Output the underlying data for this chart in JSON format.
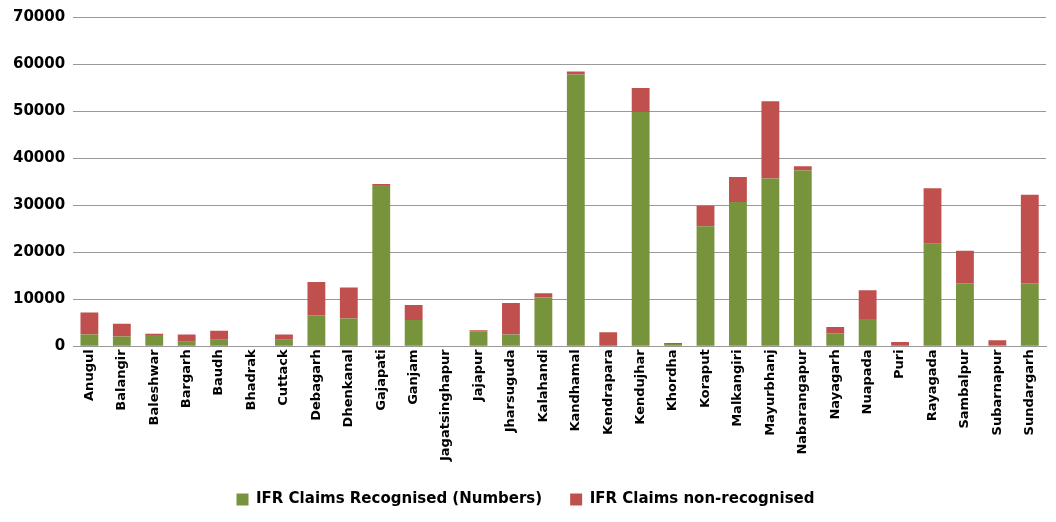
{
  "chart_data": {
    "type": "bar",
    "stacked": true,
    "categories": [
      "Anugul",
      "Balangir",
      "Baleshwar",
      "Bargarh",
      "Baudh",
      "Bhadrak",
      "Cuttack",
      "Debagarh",
      "Dhenkanal",
      "Gajapati",
      "Ganjam",
      "Jagatsinghapur",
      "Jajapur",
      "Jharsuguda",
      "Kalahandi",
      "Kandhamal",
      "Kendrapara",
      "Kendujhar",
      "Khordha",
      "Koraput",
      "Malkangiri",
      "Mayurbhanj",
      "Nabarangapur",
      "Nayagarh",
      "Nuapada",
      "Puri",
      "Rayagada",
      "Sambalpur",
      "Subarnapur",
      "Sundargarh"
    ],
    "series": [
      {
        "name": "IFR Claims Recognised (Numbers)",
        "color": "#77933c",
        "values": [
          2500,
          2100,
          2400,
          1000,
          1400,
          0,
          1400,
          6600,
          5900,
          34300,
          5600,
          0,
          3200,
          2500,
          10400,
          57800,
          0,
          49800,
          500,
          25500,
          30700,
          35700,
          37400,
          2800,
          5800,
          0,
          21800,
          13400,
          300,
          13400
        ]
      },
      {
        "name": "IFR Claims non-recognised",
        "color": "#c0504d",
        "values": [
          4700,
          2700,
          300,
          1500,
          1900,
          0,
          1100,
          7100,
          6600,
          200,
          3200,
          0,
          200,
          6700,
          900,
          600,
          3000,
          5100,
          200,
          4400,
          5300,
          16400,
          900,
          1300,
          6100,
          900,
          11800,
          6900,
          1000,
          18800
        ]
      }
    ],
    "ylim": [
      0,
      70000
    ],
    "yticks": [
      0,
      10000,
      20000,
      30000,
      40000,
      50000,
      60000,
      70000
    ],
    "grid": "y",
    "legend": "bottom"
  }
}
